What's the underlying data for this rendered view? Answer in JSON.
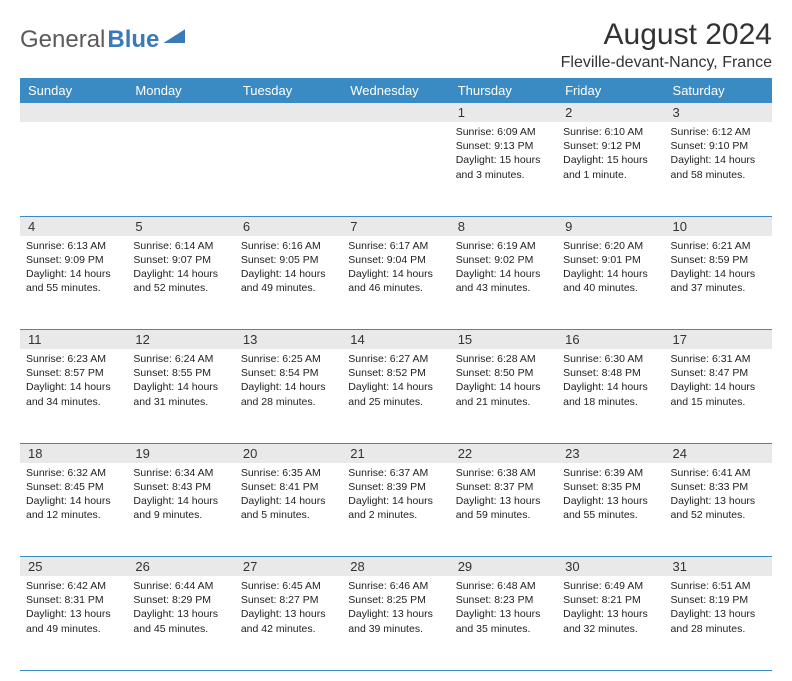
{
  "logo": {
    "text1": "General",
    "text2": "Blue"
  },
  "title": "August 2024",
  "subtitle": "Fleville-devant-Nancy, France",
  "colors": {
    "header_bg": "#3a8ac4",
    "daynum_bg": "#e9e9e9",
    "border": "#3a8ac4",
    "logo_blue": "#3a7ab8"
  },
  "weekdays": [
    "Sunday",
    "Monday",
    "Tuesday",
    "Wednesday",
    "Thursday",
    "Friday",
    "Saturday"
  ],
  "weeks": [
    [
      {
        "n": "",
        "sr": "",
        "ss": "",
        "dl": ""
      },
      {
        "n": "",
        "sr": "",
        "ss": "",
        "dl": ""
      },
      {
        "n": "",
        "sr": "",
        "ss": "",
        "dl": ""
      },
      {
        "n": "",
        "sr": "",
        "ss": "",
        "dl": ""
      },
      {
        "n": "1",
        "sr": "Sunrise: 6:09 AM",
        "ss": "Sunset: 9:13 PM",
        "dl": "Daylight: 15 hours and 3 minutes."
      },
      {
        "n": "2",
        "sr": "Sunrise: 6:10 AM",
        "ss": "Sunset: 9:12 PM",
        "dl": "Daylight: 15 hours and 1 minute."
      },
      {
        "n": "3",
        "sr": "Sunrise: 6:12 AM",
        "ss": "Sunset: 9:10 PM",
        "dl": "Daylight: 14 hours and 58 minutes."
      }
    ],
    [
      {
        "n": "4",
        "sr": "Sunrise: 6:13 AM",
        "ss": "Sunset: 9:09 PM",
        "dl": "Daylight: 14 hours and 55 minutes."
      },
      {
        "n": "5",
        "sr": "Sunrise: 6:14 AM",
        "ss": "Sunset: 9:07 PM",
        "dl": "Daylight: 14 hours and 52 minutes."
      },
      {
        "n": "6",
        "sr": "Sunrise: 6:16 AM",
        "ss": "Sunset: 9:05 PM",
        "dl": "Daylight: 14 hours and 49 minutes."
      },
      {
        "n": "7",
        "sr": "Sunrise: 6:17 AM",
        "ss": "Sunset: 9:04 PM",
        "dl": "Daylight: 14 hours and 46 minutes."
      },
      {
        "n": "8",
        "sr": "Sunrise: 6:19 AM",
        "ss": "Sunset: 9:02 PM",
        "dl": "Daylight: 14 hours and 43 minutes."
      },
      {
        "n": "9",
        "sr": "Sunrise: 6:20 AM",
        "ss": "Sunset: 9:01 PM",
        "dl": "Daylight: 14 hours and 40 minutes."
      },
      {
        "n": "10",
        "sr": "Sunrise: 6:21 AM",
        "ss": "Sunset: 8:59 PM",
        "dl": "Daylight: 14 hours and 37 minutes."
      }
    ],
    [
      {
        "n": "11",
        "sr": "Sunrise: 6:23 AM",
        "ss": "Sunset: 8:57 PM",
        "dl": "Daylight: 14 hours and 34 minutes."
      },
      {
        "n": "12",
        "sr": "Sunrise: 6:24 AM",
        "ss": "Sunset: 8:55 PM",
        "dl": "Daylight: 14 hours and 31 minutes."
      },
      {
        "n": "13",
        "sr": "Sunrise: 6:25 AM",
        "ss": "Sunset: 8:54 PM",
        "dl": "Daylight: 14 hours and 28 minutes."
      },
      {
        "n": "14",
        "sr": "Sunrise: 6:27 AM",
        "ss": "Sunset: 8:52 PM",
        "dl": "Daylight: 14 hours and 25 minutes."
      },
      {
        "n": "15",
        "sr": "Sunrise: 6:28 AM",
        "ss": "Sunset: 8:50 PM",
        "dl": "Daylight: 14 hours and 21 minutes."
      },
      {
        "n": "16",
        "sr": "Sunrise: 6:30 AM",
        "ss": "Sunset: 8:48 PM",
        "dl": "Daylight: 14 hours and 18 minutes."
      },
      {
        "n": "17",
        "sr": "Sunrise: 6:31 AM",
        "ss": "Sunset: 8:47 PM",
        "dl": "Daylight: 14 hours and 15 minutes."
      }
    ],
    [
      {
        "n": "18",
        "sr": "Sunrise: 6:32 AM",
        "ss": "Sunset: 8:45 PM",
        "dl": "Daylight: 14 hours and 12 minutes."
      },
      {
        "n": "19",
        "sr": "Sunrise: 6:34 AM",
        "ss": "Sunset: 8:43 PM",
        "dl": "Daylight: 14 hours and 9 minutes."
      },
      {
        "n": "20",
        "sr": "Sunrise: 6:35 AM",
        "ss": "Sunset: 8:41 PM",
        "dl": "Daylight: 14 hours and 5 minutes."
      },
      {
        "n": "21",
        "sr": "Sunrise: 6:37 AM",
        "ss": "Sunset: 8:39 PM",
        "dl": "Daylight: 14 hours and 2 minutes."
      },
      {
        "n": "22",
        "sr": "Sunrise: 6:38 AM",
        "ss": "Sunset: 8:37 PM",
        "dl": "Daylight: 13 hours and 59 minutes."
      },
      {
        "n": "23",
        "sr": "Sunrise: 6:39 AM",
        "ss": "Sunset: 8:35 PM",
        "dl": "Daylight: 13 hours and 55 minutes."
      },
      {
        "n": "24",
        "sr": "Sunrise: 6:41 AM",
        "ss": "Sunset: 8:33 PM",
        "dl": "Daylight: 13 hours and 52 minutes."
      }
    ],
    [
      {
        "n": "25",
        "sr": "Sunrise: 6:42 AM",
        "ss": "Sunset: 8:31 PM",
        "dl": "Daylight: 13 hours and 49 minutes."
      },
      {
        "n": "26",
        "sr": "Sunrise: 6:44 AM",
        "ss": "Sunset: 8:29 PM",
        "dl": "Daylight: 13 hours and 45 minutes."
      },
      {
        "n": "27",
        "sr": "Sunrise: 6:45 AM",
        "ss": "Sunset: 8:27 PM",
        "dl": "Daylight: 13 hours and 42 minutes."
      },
      {
        "n": "28",
        "sr": "Sunrise: 6:46 AM",
        "ss": "Sunset: 8:25 PM",
        "dl": "Daylight: 13 hours and 39 minutes."
      },
      {
        "n": "29",
        "sr": "Sunrise: 6:48 AM",
        "ss": "Sunset: 8:23 PM",
        "dl": "Daylight: 13 hours and 35 minutes."
      },
      {
        "n": "30",
        "sr": "Sunrise: 6:49 AM",
        "ss": "Sunset: 8:21 PM",
        "dl": "Daylight: 13 hours and 32 minutes."
      },
      {
        "n": "31",
        "sr": "Sunrise: 6:51 AM",
        "ss": "Sunset: 8:19 PM",
        "dl": "Daylight: 13 hours and 28 minutes."
      }
    ]
  ]
}
